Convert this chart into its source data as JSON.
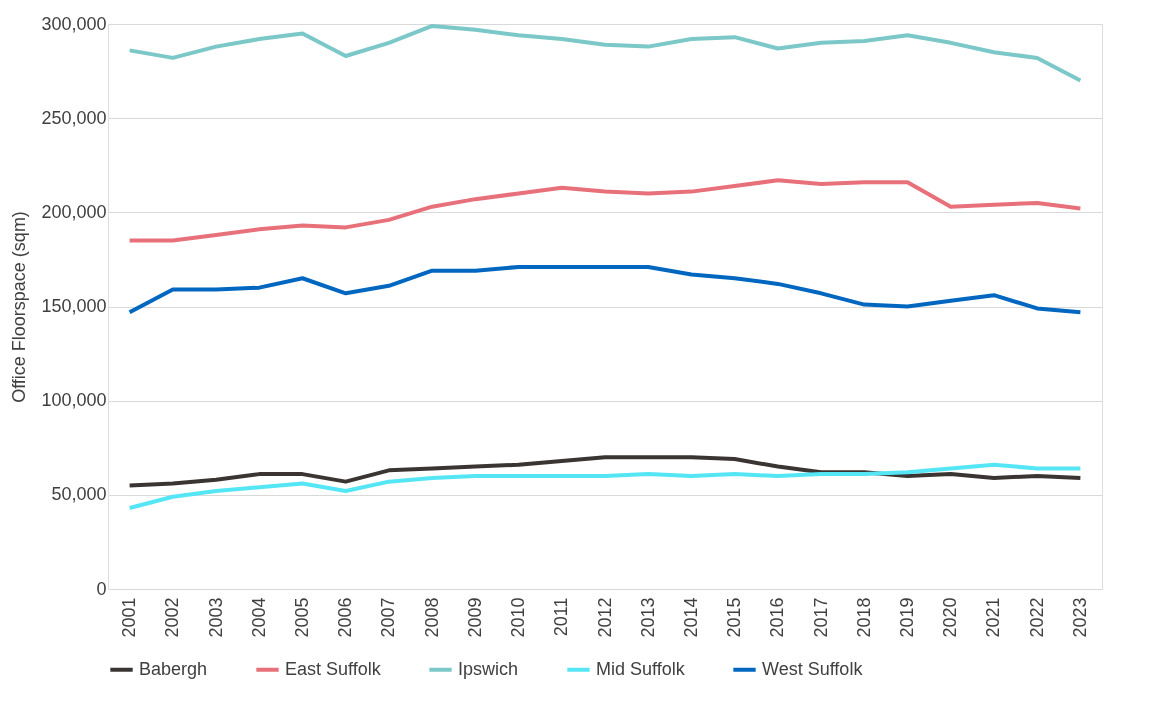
{
  "chart_data": {
    "type": "line",
    "ylabel": "Office Floorspace (sqm)",
    "categories": [
      "2001",
      "2002",
      "2003",
      "2004",
      "2005",
      "2006",
      "2007",
      "2008",
      "2009",
      "2010",
      "2011",
      "2012",
      "2013",
      "2014",
      "2015",
      "2016",
      "2017",
      "2018",
      "2019",
      "2020",
      "2021",
      "2022",
      "2023"
    ],
    "ylim": [
      0,
      300000
    ],
    "yticks": [
      0,
      {
        "value": 50000,
        "label": "50,000"
      },
      {
        "value": 100000,
        "label": "100,000"
      },
      {
        "value": 150000,
        "label": "150,000"
      },
      {
        "value": 200000,
        "label": "200,000"
      },
      {
        "value": 250000,
        "label": "250,000"
      },
      {
        "value": 300000,
        "label": "300,000"
      }
    ],
    "grid": "y",
    "legend": "bottom",
    "marker": "none",
    "line_style": "solid",
    "series": [
      {
        "name": "Babergh",
        "color": "#3a3532",
        "values": [
          55000,
          56000,
          58000,
          61000,
          61000,
          57000,
          63000,
          64000,
          65000,
          66000,
          68000,
          70000,
          70000,
          70000,
          69000,
          65000,
          62000,
          62000,
          60000,
          61000,
          59000,
          60000,
          59000
        ]
      },
      {
        "name": "East Suffolk",
        "color": "#e8707a",
        "values": [
          185000,
          185000,
          188000,
          191000,
          193000,
          192000,
          196000,
          203000,
          207000,
          210000,
          213000,
          211000,
          210000,
          211000,
          214000,
          217000,
          215000,
          216000,
          216000,
          203000,
          204000,
          205000,
          202000
        ]
      },
      {
        "name": "Ipswich",
        "color": "#7cc8c8",
        "values": [
          286000,
          282000,
          288000,
          292000,
          295000,
          283000,
          290000,
          299000,
          297000,
          294000,
          292000,
          289000,
          288000,
          292000,
          293000,
          287000,
          290000,
          291000,
          294000,
          290000,
          285000,
          282000,
          270000
        ]
      },
      {
        "name": "Mid Suffolk",
        "color": "#55e6f6",
        "values": [
          43000,
          49000,
          52000,
          54000,
          56000,
          52000,
          57000,
          59000,
          60000,
          60000,
          60000,
          60000,
          61000,
          60000,
          61000,
          60000,
          61000,
          61000,
          62000,
          64000,
          66000,
          64000,
          64000
        ]
      },
      {
        "name": "West Suffolk",
        "color": "#0067c0",
        "values": [
          147000,
          159000,
          159000,
          160000,
          165000,
          157000,
          161000,
          169000,
          169000,
          171000,
          171000,
          171000,
          171000,
          167000,
          165000,
          162000,
          157000,
          151000,
          150000,
          153000,
          156000,
          149000,
          147000
        ]
      }
    ]
  }
}
